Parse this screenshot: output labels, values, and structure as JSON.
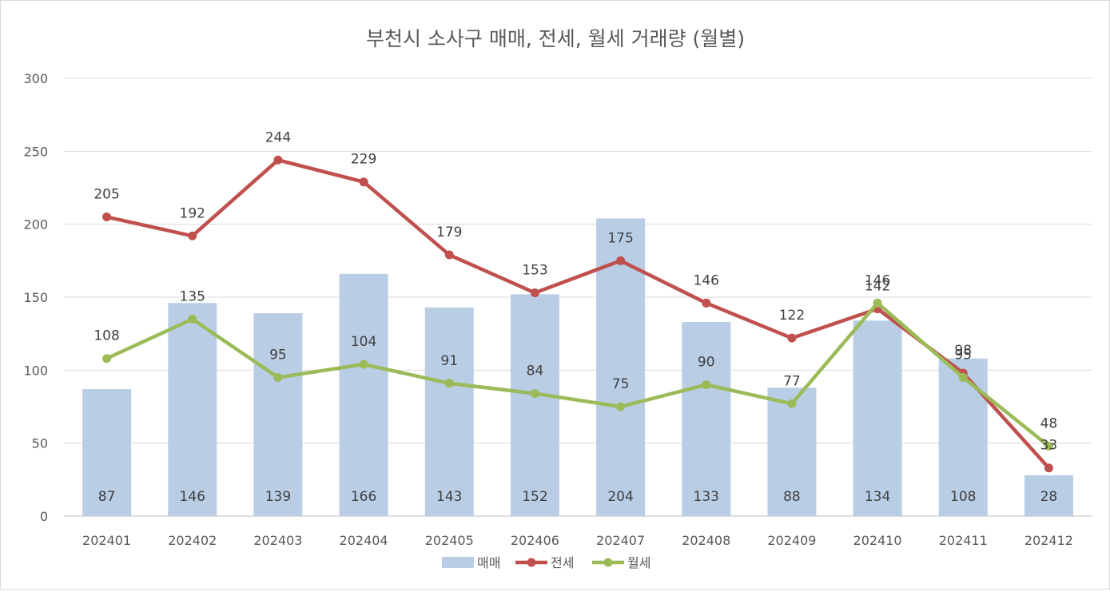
{
  "chart_data": {
    "type": "bar",
    "title": "부천시 소사구 매매, 전세, 월세 거래량 (월별)",
    "categories": [
      "202401",
      "202402",
      "202403",
      "202404",
      "202405",
      "202406",
      "202407",
      "202408",
      "202409",
      "202410",
      "202411",
      "202412"
    ],
    "ylim": [
      0,
      300
    ],
    "yticks": [
      0,
      50,
      100,
      150,
      200,
      250,
      300
    ],
    "grid": true,
    "legend_position": "bottom",
    "series": [
      {
        "name": "매매",
        "type": "bar",
        "color": "#b9cde5",
        "values": [
          87,
          146,
          139,
          166,
          143,
          152,
          204,
          133,
          88,
          134,
          108,
          28
        ]
      },
      {
        "name": "전세",
        "type": "line",
        "color": "#c0504d",
        "values": [
          205,
          192,
          244,
          229,
          179,
          153,
          175,
          146,
          122,
          142,
          98,
          33
        ]
      },
      {
        "name": "월세",
        "type": "line",
        "color": "#9bbb59",
        "values": [
          108,
          135,
          95,
          104,
          91,
          84,
          75,
          90,
          77,
          146,
          95,
          48
        ]
      }
    ]
  }
}
